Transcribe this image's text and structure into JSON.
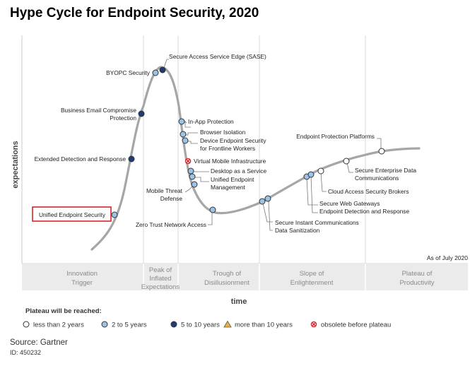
{
  "title": "Hype Cycle for Endpoint Security, 2020",
  "source": "Source: Gartner",
  "doc_id": "ID: 450232",
  "colors": {
    "curve": "#a6a6a6",
    "less_than_2": "#ffffff",
    "two_to_five": "#9cc3e6",
    "five_to_ten": "#1f3b73",
    "more_than_10": "#f0b13a",
    "obsolete": "#d9262c",
    "highlight_box": "#d9262c",
    "phase_band": "#ebebeb"
  },
  "chart_data": {
    "type": "hype-cycle",
    "ylabel": "expectations",
    "xlabel": "time",
    "as_of": "As of July 2020",
    "highlighted": "Unified Endpoint Security",
    "phases": [
      "Innovation Trigger",
      "Peak of Inflated Expectations",
      "Trough of Disillusionment",
      "Slope of Enlightenment",
      "Plateau of Productivity"
    ],
    "legend_title": "Plateau will be reached:",
    "legend": [
      {
        "key": "less_than_2",
        "label": "less than 2 years"
      },
      {
        "key": "two_to_five",
        "label": "2 to 5 years"
      },
      {
        "key": "five_to_ten",
        "label": "5 to 10 years"
      },
      {
        "key": "more_than_10",
        "label": "more than 10 years"
      },
      {
        "key": "obsolete",
        "label": "obsolete before plateau"
      }
    ],
    "technologies": [
      {
        "name": "Unified Endpoint Security",
        "phase": "Innovation Trigger",
        "plateau": "two_to_five"
      },
      {
        "name": "Extended Detection and Response",
        "phase": "Innovation Trigger",
        "plateau": "five_to_ten"
      },
      {
        "name": "Business Email Compromise Protection",
        "phase": "Innovation Trigger",
        "plateau": "five_to_ten"
      },
      {
        "name": "BYOPC Security",
        "phase": "Peak of Inflated Expectations",
        "plateau": "two_to_five"
      },
      {
        "name": "Secure Access Service Edge (SASE)",
        "phase": "Peak of Inflated Expectations",
        "plateau": "five_to_ten"
      },
      {
        "name": "In-App Protection",
        "phase": "Trough of Disillusionment",
        "plateau": "two_to_five"
      },
      {
        "name": "Browser Isolation",
        "phase": "Trough of Disillusionment",
        "plateau": "two_to_five"
      },
      {
        "name": "Device Endpoint Security for Frontline Workers",
        "phase": "Trough of Disillusionment",
        "plateau": "two_to_five"
      },
      {
        "name": "Virtual Mobile Infrastructure",
        "phase": "Trough of Disillusionment",
        "plateau": "obsolete"
      },
      {
        "name": "Desktop as a Service",
        "phase": "Trough of Disillusionment",
        "plateau": "two_to_five"
      },
      {
        "name": "Unified Endpoint Management",
        "phase": "Trough of Disillusionment",
        "plateau": "two_to_five"
      },
      {
        "name": "Mobile Threat Defense",
        "phase": "Trough of Disillusionment",
        "plateau": "two_to_five"
      },
      {
        "name": "Zero Trust Network Access",
        "phase": "Trough of Disillusionment",
        "plateau": "two_to_five"
      },
      {
        "name": "Secure Instant Communications",
        "phase": "Slope of Enlightenment",
        "plateau": "two_to_five"
      },
      {
        "name": "Data Sanitization",
        "phase": "Slope of Enlightenment",
        "plateau": "two_to_five"
      },
      {
        "name": "Secure Web Gateways",
        "phase": "Slope of Enlightenment",
        "plateau": "two_to_five"
      },
      {
        "name": "Endpoint Detection and Response",
        "phase": "Slope of Enlightenment",
        "plateau": "two_to_five"
      },
      {
        "name": "Cloud Access Security Brokers",
        "phase": "Slope of Enlightenment",
        "plateau": "less_than_2"
      },
      {
        "name": "Secure Enterprise Data Communications",
        "phase": "Slope of Enlightenment",
        "plateau": "less_than_2"
      },
      {
        "name": "Endpoint Protection Platforms",
        "phase": "Slope of Enlightenment",
        "plateau": "less_than_2"
      }
    ]
  }
}
